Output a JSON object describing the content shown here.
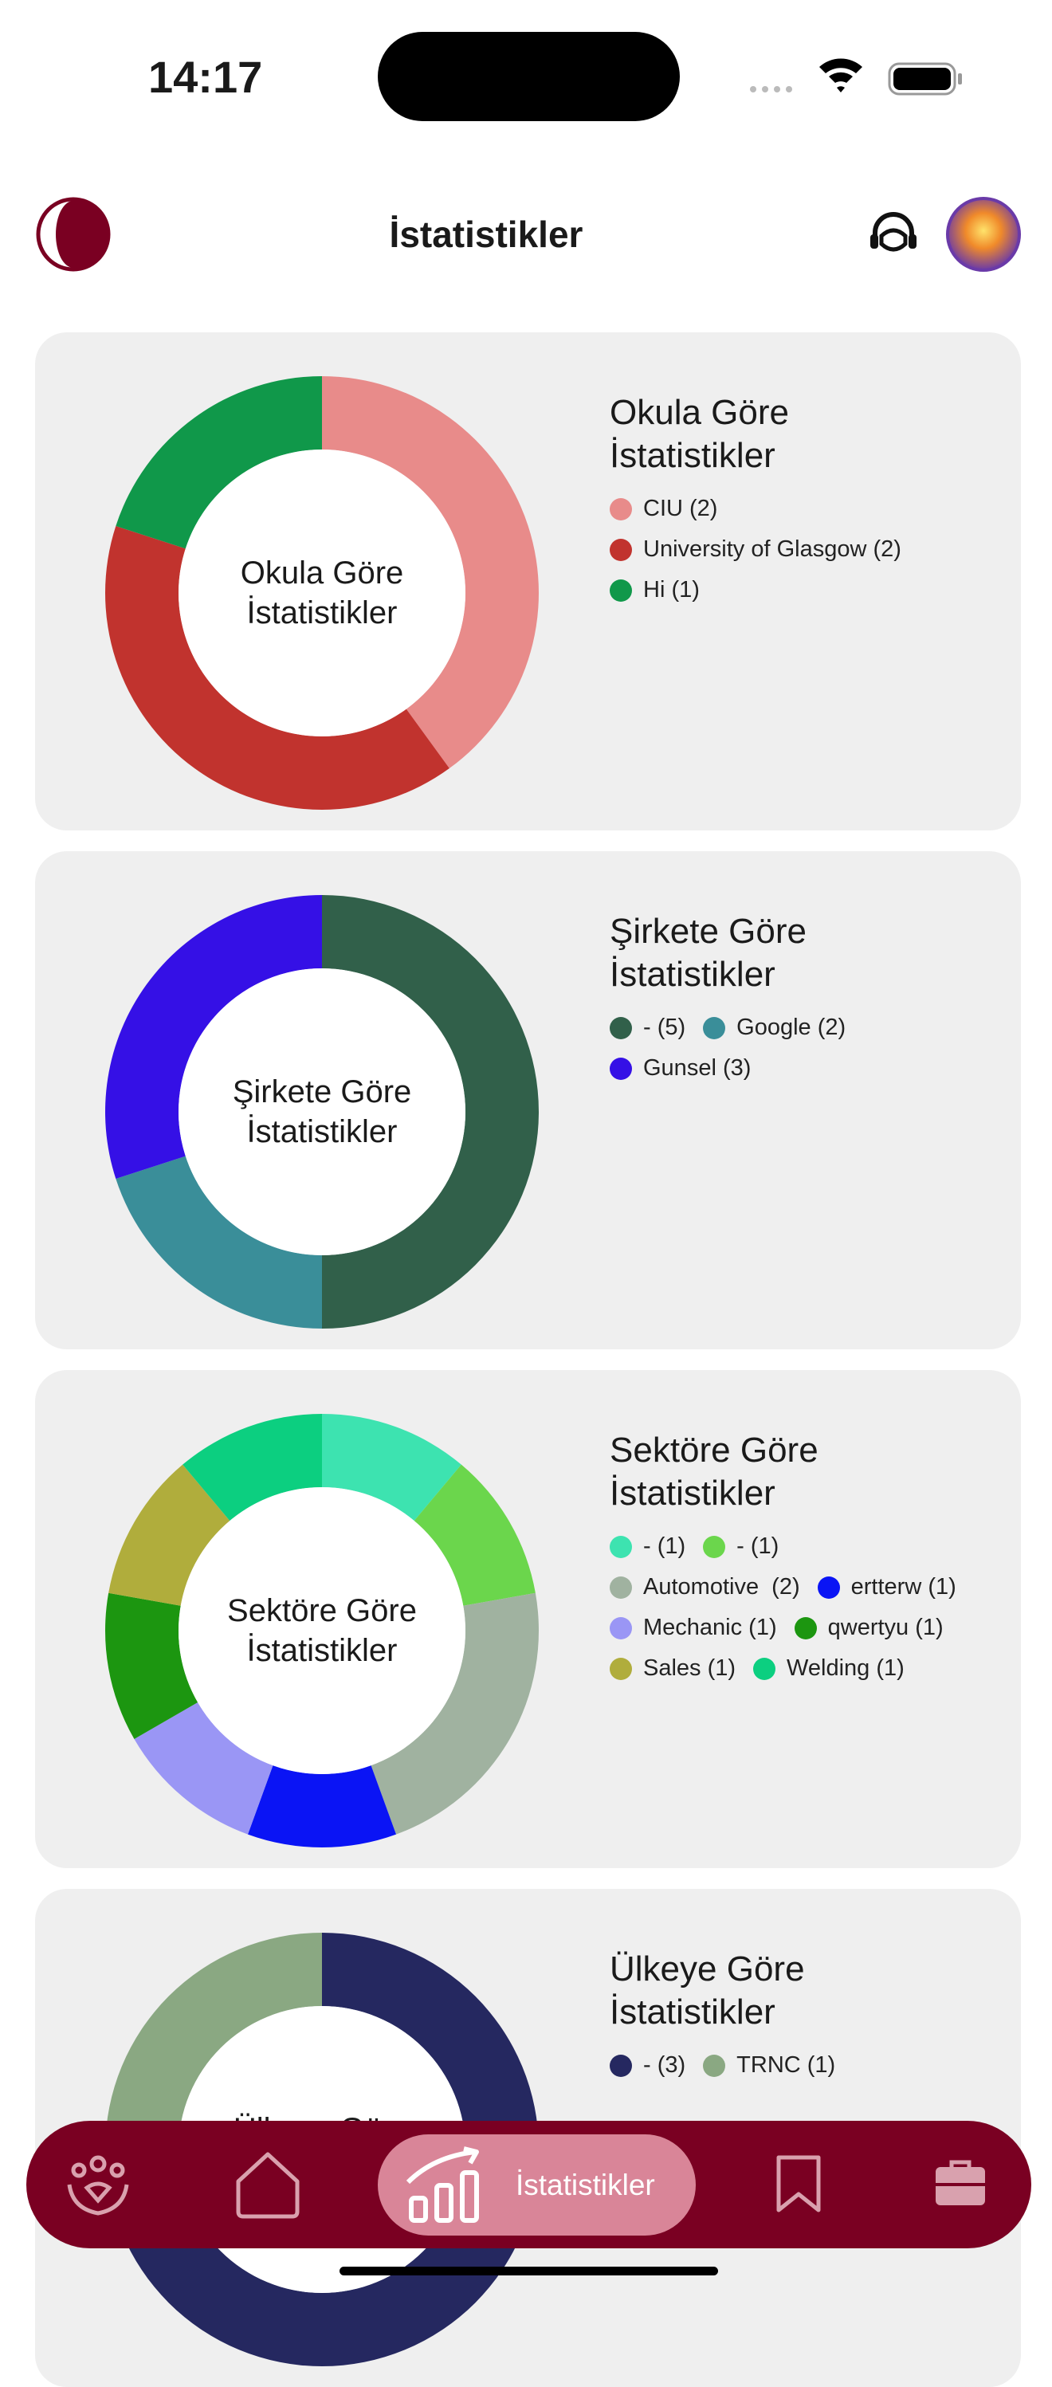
{
  "status_bar": {
    "time": "14:17"
  },
  "header": {
    "title": "İstatistikler"
  },
  "chart_data": [
    {
      "type": "pie",
      "donut": true,
      "title": "Okula Göre İstatistikler",
      "categories": [
        "CIU (2)",
        "University of Glasgow (2)",
        "Hi (1)"
      ],
      "values": [
        2,
        2,
        1
      ],
      "colors": [
        "#e88b8a",
        "#c1332e",
        "#10984a"
      ]
    },
    {
      "type": "pie",
      "donut": true,
      "title": "Şirkete Göre İstatistikler",
      "categories": [
        "- (5)",
        "Google (2)",
        "Gunsel (3)"
      ],
      "values": [
        5,
        2,
        3
      ],
      "colors": [
        "#31604a",
        "#3a8e99",
        "#3510e6"
      ]
    },
    {
      "type": "pie",
      "donut": true,
      "title": "Sektöre Göre İstatistikler",
      "categories": [
        "- (1)",
        "- (1)",
        "Automotive  (2)",
        "ertterw (1)",
        "Mechanic (1)",
        "qwertyu (1)",
        "Sales (1)",
        "Welding (1)"
      ],
      "values": [
        1,
        1,
        2,
        1,
        1,
        1,
        1,
        1
      ],
      "colors": [
        "#3de3b0",
        "#6bd64c",
        "#a0b2a0",
        "#0a14f5",
        "#9a96f5",
        "#1c9610",
        "#b0ad3c",
        "#0ccf80"
      ]
    },
    {
      "type": "pie",
      "donut": true,
      "title": "Ülkeye Göre İstatistikler",
      "categories": [
        "- (3)",
        "TRNC (1)"
      ],
      "values": [
        3,
        1
      ],
      "colors": [
        "#252860",
        "#8aa882"
      ]
    }
  ],
  "nav": {
    "active_label": "İstatistikler"
  }
}
